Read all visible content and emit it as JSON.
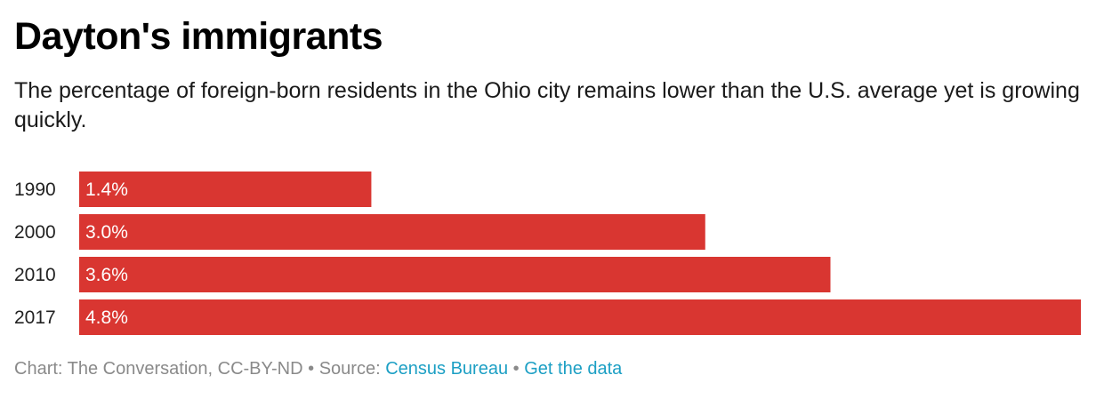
{
  "chart_data": {
    "type": "bar",
    "orientation": "horizontal",
    "title": "Dayton's immigrants",
    "subtitle": "The percentage of foreign-born residents in the Ohio city remains lower than the U.S. average yet is growing quickly.",
    "categories": [
      "1990",
      "2000",
      "2010",
      "2017"
    ],
    "values": [
      1.4,
      3.0,
      3.6,
      4.8
    ],
    "value_labels": [
      "1.4%",
      "3.0%",
      "3.6%",
      "4.8%"
    ],
    "xlim": [
      0,
      4.8
    ],
    "bar_color": "#d93631",
    "value_label_color": "#ffffff",
    "grid": false,
    "legend": "none"
  },
  "footer": {
    "credit": "Chart: The Conversation, CC-BY-ND",
    "separator": "•",
    "source_prefix": "Source: ",
    "source_link": "Census Bureau",
    "data_link": "Get the data"
  },
  "colors": {
    "link": "#1c9fc4",
    "footer_text": "#8a8a8a"
  }
}
